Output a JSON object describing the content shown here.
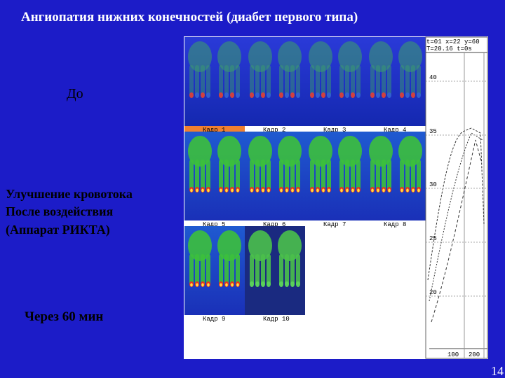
{
  "title": "Ангиопатия нижних конечностей (диабет первого типа)",
  "labels": {
    "before": "До",
    "improvement": [
      "Улучшение кровотока",
      "После воздействия",
      "(Аппарат РИКТА)"
    ],
    "after": "Через 60 мин"
  },
  "frames": [
    "Кадр 1",
    "Кадр 2",
    "Кадр 3",
    "Кадр 4",
    "Кадр 5",
    "Кадр 6",
    "Кадр 7",
    "Кадр 8",
    "Кадр 9",
    "Кадр 10"
  ],
  "graph": {
    "header": [
      "t=01 x=22 y=60",
      "T=20.16 t=0s"
    ],
    "y_labels": [
      "40",
      "35",
      "30",
      "25",
      "20"
    ],
    "x_labels": [
      "100",
      "200"
    ]
  },
  "page_number": "14"
}
